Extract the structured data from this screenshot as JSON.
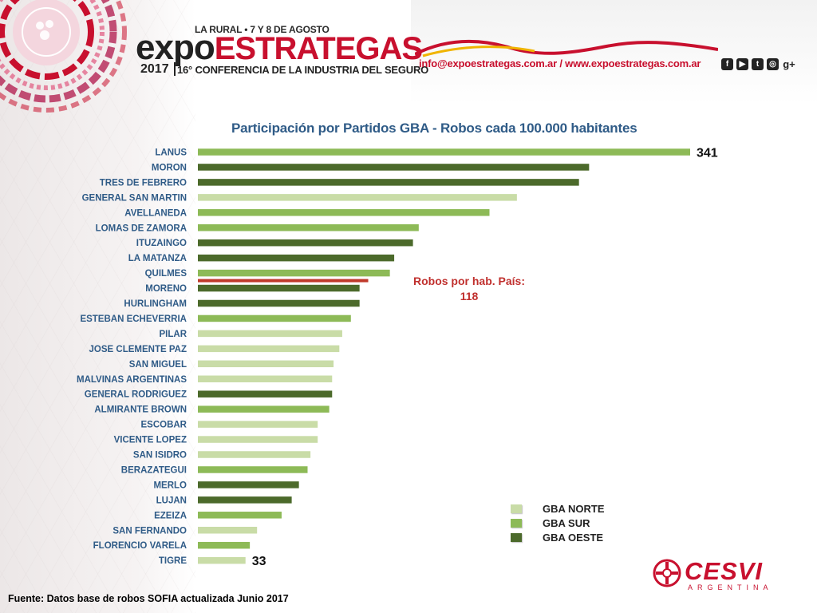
{
  "header": {
    "event_tag": "LA RURAL • 7 Y 8 DE AGOSTO",
    "brand_expo": "expo",
    "brand_strategas": "ESTRATEGAS",
    "year": "2017",
    "conference": "16° CONFERENCIA DE LA INDUSTRIA DEL SEGURO",
    "contact": "info@expoestrategas.com.ar / www.expoestrategas.com.ar",
    "social": [
      {
        "icon": "facebook-icon",
        "glyph": "f"
      },
      {
        "icon": "youtube-icon",
        "glyph": "▶"
      },
      {
        "icon": "twitter-icon",
        "glyph": "t"
      },
      {
        "icon": "instagram-icon",
        "glyph": "◎"
      },
      {
        "icon": "google-plus-icon",
        "glyph": "g+"
      }
    ]
  },
  "chart_data": {
    "type": "bar",
    "orientation": "horizontal",
    "title": "Participación por Partidos GBA - Robos cada 100.000 habitantes",
    "categories": [
      "LANUS",
      "MORON",
      "TRES DE FEBRERO",
      "GENERAL SAN MARTIN",
      "AVELLANEDA",
      "LOMAS DE ZAMORA",
      "ITUZAINGO",
      "LA MATANZA",
      "QUILMES",
      "MORENO",
      "HURLINGHAM",
      "ESTEBAN ECHEVERRIA",
      "PILAR",
      "JOSE CLEMENTE PAZ",
      "SAN MIGUEL",
      "MALVINAS ARGENTINAS",
      "GENERAL RODRIGUEZ",
      "ALMIRANTE BROWN",
      "ESCOBAR",
      "VICENTE LOPEZ",
      "SAN ISIDRO",
      "BERAZATEGUI",
      "MERLO",
      "LUJAN",
      "EZEIZA",
      "SAN FERNANDO",
      "FLORENCIO VARELA",
      "TIGRE"
    ],
    "values": [
      341,
      271,
      264,
      221,
      202,
      153,
      149,
      136,
      133,
      112,
      112,
      106,
      100,
      98,
      94,
      93,
      93,
      91,
      83,
      83,
      78,
      76,
      70,
      65,
      58,
      41,
      36,
      33
    ],
    "groups": [
      "GBA SUR",
      "GBA OESTE",
      "GBA OESTE",
      "GBA NORTE",
      "GBA SUR",
      "GBA SUR",
      "GBA OESTE",
      "GBA OESTE",
      "GBA SUR",
      "GBA OESTE",
      "GBA OESTE",
      "GBA SUR",
      "GBA NORTE",
      "GBA NORTE",
      "GBA NORTE",
      "GBA NORTE",
      "GBA OESTE",
      "GBA SUR",
      "GBA NORTE",
      "GBA NORTE",
      "GBA NORTE",
      "GBA SUR",
      "GBA OESTE",
      "GBA OESTE",
      "GBA SUR",
      "GBA NORTE",
      "GBA SUR",
      "GBA NORTE"
    ],
    "data_labels": [
      {
        "category": "LANUS",
        "text": "341"
      },
      {
        "category": "TIGRE",
        "text": "33"
      }
    ],
    "reference_line": {
      "value": 118,
      "label": "Robos por hab. País:",
      "value_text": "118",
      "color": "#c0392b"
    },
    "legend": [
      {
        "name": "GBA NORTE",
        "color": "#c9dca7"
      },
      {
        "name": "GBA SUR",
        "color": "#8dba57"
      },
      {
        "name": "GBA OESTE",
        "color": "#4c6a2b"
      }
    ],
    "legend_placement": "bottom-right",
    "xlim": [
      0,
      341
    ],
    "grid": false
  },
  "footer": {
    "source": "Fuente: Datos base de robos SOFIA actualizada Junio 2017",
    "logo_name": "CESVI",
    "logo_sub": "ARGENTINA"
  }
}
